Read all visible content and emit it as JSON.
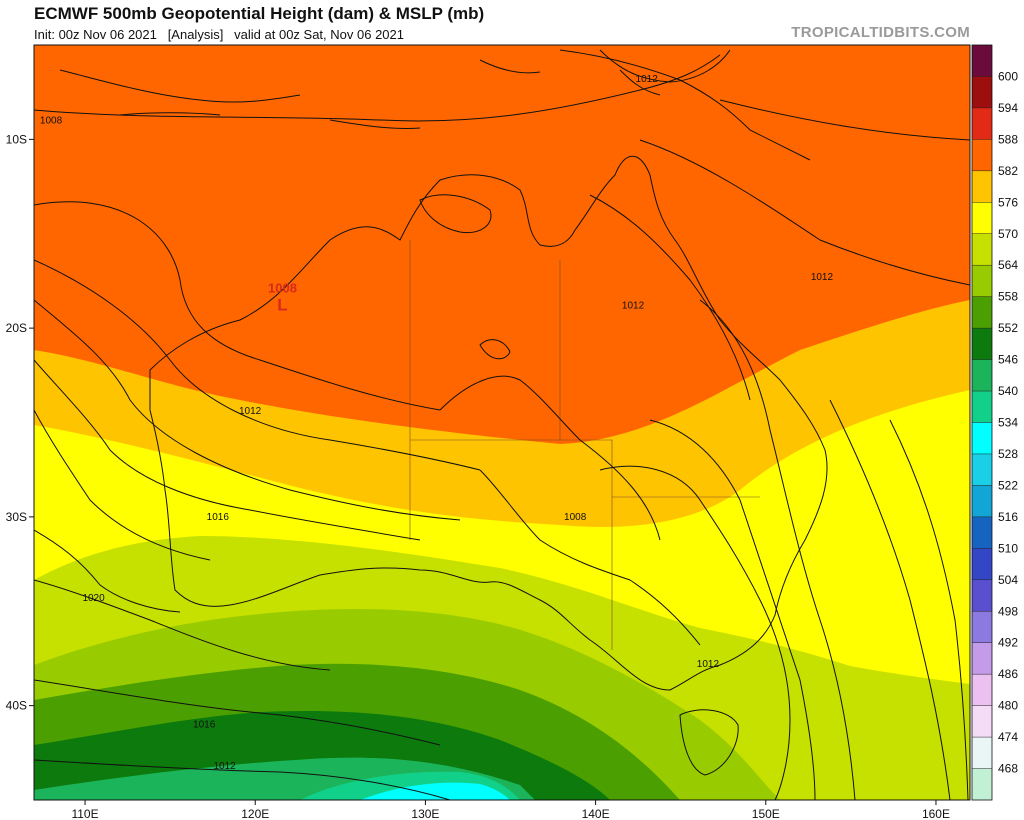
{
  "header": {
    "title": "ECMWF 500mb Geopotential Height (dam) & MSLP (mb)",
    "subtitle": "Init: 00z Nov 06 2021   [Analysis]   valid at 00z Sat, Nov 06 2021",
    "site": "TROPICALTIDBITS.COM"
  },
  "map": {
    "region": "Australia",
    "lon_range": [
      107,
      162
    ],
    "lat_range": [
      -45,
      -5
    ],
    "lon_ticks": [
      "110E",
      "120E",
      "130E",
      "140E",
      "150E",
      "160E"
    ],
    "lat_ticks": [
      "10S",
      "20S",
      "30S",
      "40S"
    ],
    "isobar_labels": [
      {
        "text": "1008",
        "lon": 108,
        "lat": -9
      },
      {
        "text": "1012",
        "lon": 143,
        "lat": -6.8
      },
      {
        "text": "1012",
        "lon": 153.3,
        "lat": -17.3
      },
      {
        "text": "1012",
        "lon": 142.2,
        "lat": -18.8
      },
      {
        "text": "1012",
        "lon": 119.7,
        "lat": -24.4
      },
      {
        "text": "1008",
        "lon": 138.8,
        "lat": -30
      },
      {
        "text": "1016",
        "lon": 117.8,
        "lat": -30
      },
      {
        "text": "1020",
        "lon": 110.5,
        "lat": -34.3
      },
      {
        "text": "1012",
        "lon": 146.6,
        "lat": -37.8
      },
      {
        "text": "1016",
        "lon": 117,
        "lat": -41
      },
      {
        "text": "1012",
        "lon": 118.2,
        "lat": -43.2
      }
    ],
    "lows": [
      {
        "text": "1008",
        "symbol": "L",
        "lon": 121.6,
        "lat": -18.7
      }
    ]
  },
  "colorbar": {
    "levels": [
      "600",
      "594",
      "588",
      "582",
      "576",
      "570",
      "564",
      "558",
      "552",
      "546",
      "540",
      "534",
      "528",
      "522",
      "516",
      "510",
      "504",
      "498",
      "492",
      "486",
      "480",
      "474",
      "468"
    ],
    "colors": [
      "#6b0b3b",
      "#9d0e0e",
      "#e32a17",
      "#ff6600",
      "#ffc400",
      "#ffff00",
      "#c6e000",
      "#99cc00",
      "#4c9f00",
      "#0c7a0c",
      "#1cb45a",
      "#11d18a",
      "#00ffff",
      "#1ad0e6",
      "#12a6d6",
      "#1565c0",
      "#3346c6",
      "#5a4fcf",
      "#8d7ae0",
      "#c39be8",
      "#ecc0f0",
      "#f4dcf6",
      "#eaf5f6",
      "#c2f0d4"
    ]
  }
}
